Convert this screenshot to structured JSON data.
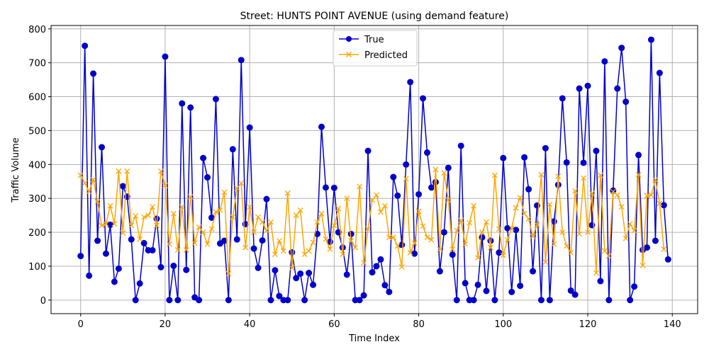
{
  "chart_data": {
    "type": "line",
    "title": "Street: HUNTS POINT AVENUE (using demand feature)",
    "xlabel": "Time Index",
    "ylabel": "Traffic Volume",
    "xlim": [
      -7,
      146
    ],
    "ylim": [
      -40,
      810
    ],
    "xticks": [
      0,
      20,
      40,
      60,
      80,
      100,
      120,
      140
    ],
    "yticks": [
      0,
      100,
      200,
      300,
      400,
      500,
      600,
      700,
      800
    ],
    "grid": true,
    "legend_position": "top-center",
    "series": [
      {
        "name": "True",
        "color": "#0000cc",
        "marker": "circle",
        "values": [
          130,
          750,
          72,
          668,
          175,
          451,
          137,
          222,
          54,
          93,
          336,
          305,
          179,
          0,
          49,
          168,
          147,
          147,
          240,
          97,
          718,
          0,
          101,
          0,
          580,
          89,
          568,
          8,
          0,
          419,
          362,
          243,
          593,
          167,
          175,
          0,
          445,
          179,
          708,
          224,
          509,
          152,
          95,
          176,
          298,
          0,
          88,
          12,
          0,
          0,
          141,
          65,
          78,
          0,
          80,
          45,
          195,
          511,
          332,
          172,
          331,
          200,
          155,
          75,
          195,
          0,
          0,
          14,
          440,
          82,
          100,
          120,
          44,
          24,
          363,
          308,
          163,
          400,
          643,
          137,
          312,
          595,
          435,
          332,
          348,
          85,
          200,
          390,
          134,
          0,
          455,
          50,
          0,
          0,
          45,
          185,
          27,
          175,
          0,
          140,
          419,
          212,
          24,
          207,
          42,
          421,
          327,
          85,
          279,
          0,
          448,
          0,
          232,
          340,
          595,
          406,
          28,
          16,
          624,
          405,
          632,
          221,
          440,
          56,
          704,
          0,
          323,
          624,
          744,
          585,
          0,
          40,
          428,
          148,
          155,
          768,
          175,
          670,
          280,
          120
        ]
      },
      {
        "name": "Predicted",
        "color": "#ffa500",
        "marker": "x",
        "values": [
          368,
          345,
          320,
          355,
          290,
          220,
          225,
          278,
          225,
          380,
          198,
          380,
          220,
          248,
          180,
          245,
          250,
          275,
          220,
          380,
          338,
          165,
          255,
          148,
          275,
          148,
          305,
          168,
          215,
          200,
          165,
          210,
          260,
          265,
          318,
          78,
          245,
          330,
          345,
          155,
          275,
          200,
          245,
          230,
          205,
          230,
          135,
          175,
          145,
          315,
          95,
          250,
          265,
          135,
          145,
          170,
          230,
          255,
          180,
          150,
          220,
          270,
          135,
          300,
          175,
          155,
          335,
          110,
          210,
          295,
          310,
          260,
          278,
          185,
          185,
          160,
          98,
          358,
          140,
          168,
          262,
          218,
          185,
          178,
          385,
          150,
          375,
          295,
          150,
          205,
          235,
          165,
          228,
          278,
          125,
          200,
          230,
          155,
          368,
          210,
          132,
          178,
          212,
          272,
          302,
          255,
          240,
          188,
          222,
          370,
          112,
          282,
          165,
          365,
          200,
          160,
          140,
          322,
          195,
          360,
          200,
          315,
          80,
          368,
          145,
          130,
          320,
          310,
          275,
          182,
          225,
          205,
          370,
          102,
          308,
          310,
          355,
          285,
          150
        ]
      }
    ]
  }
}
